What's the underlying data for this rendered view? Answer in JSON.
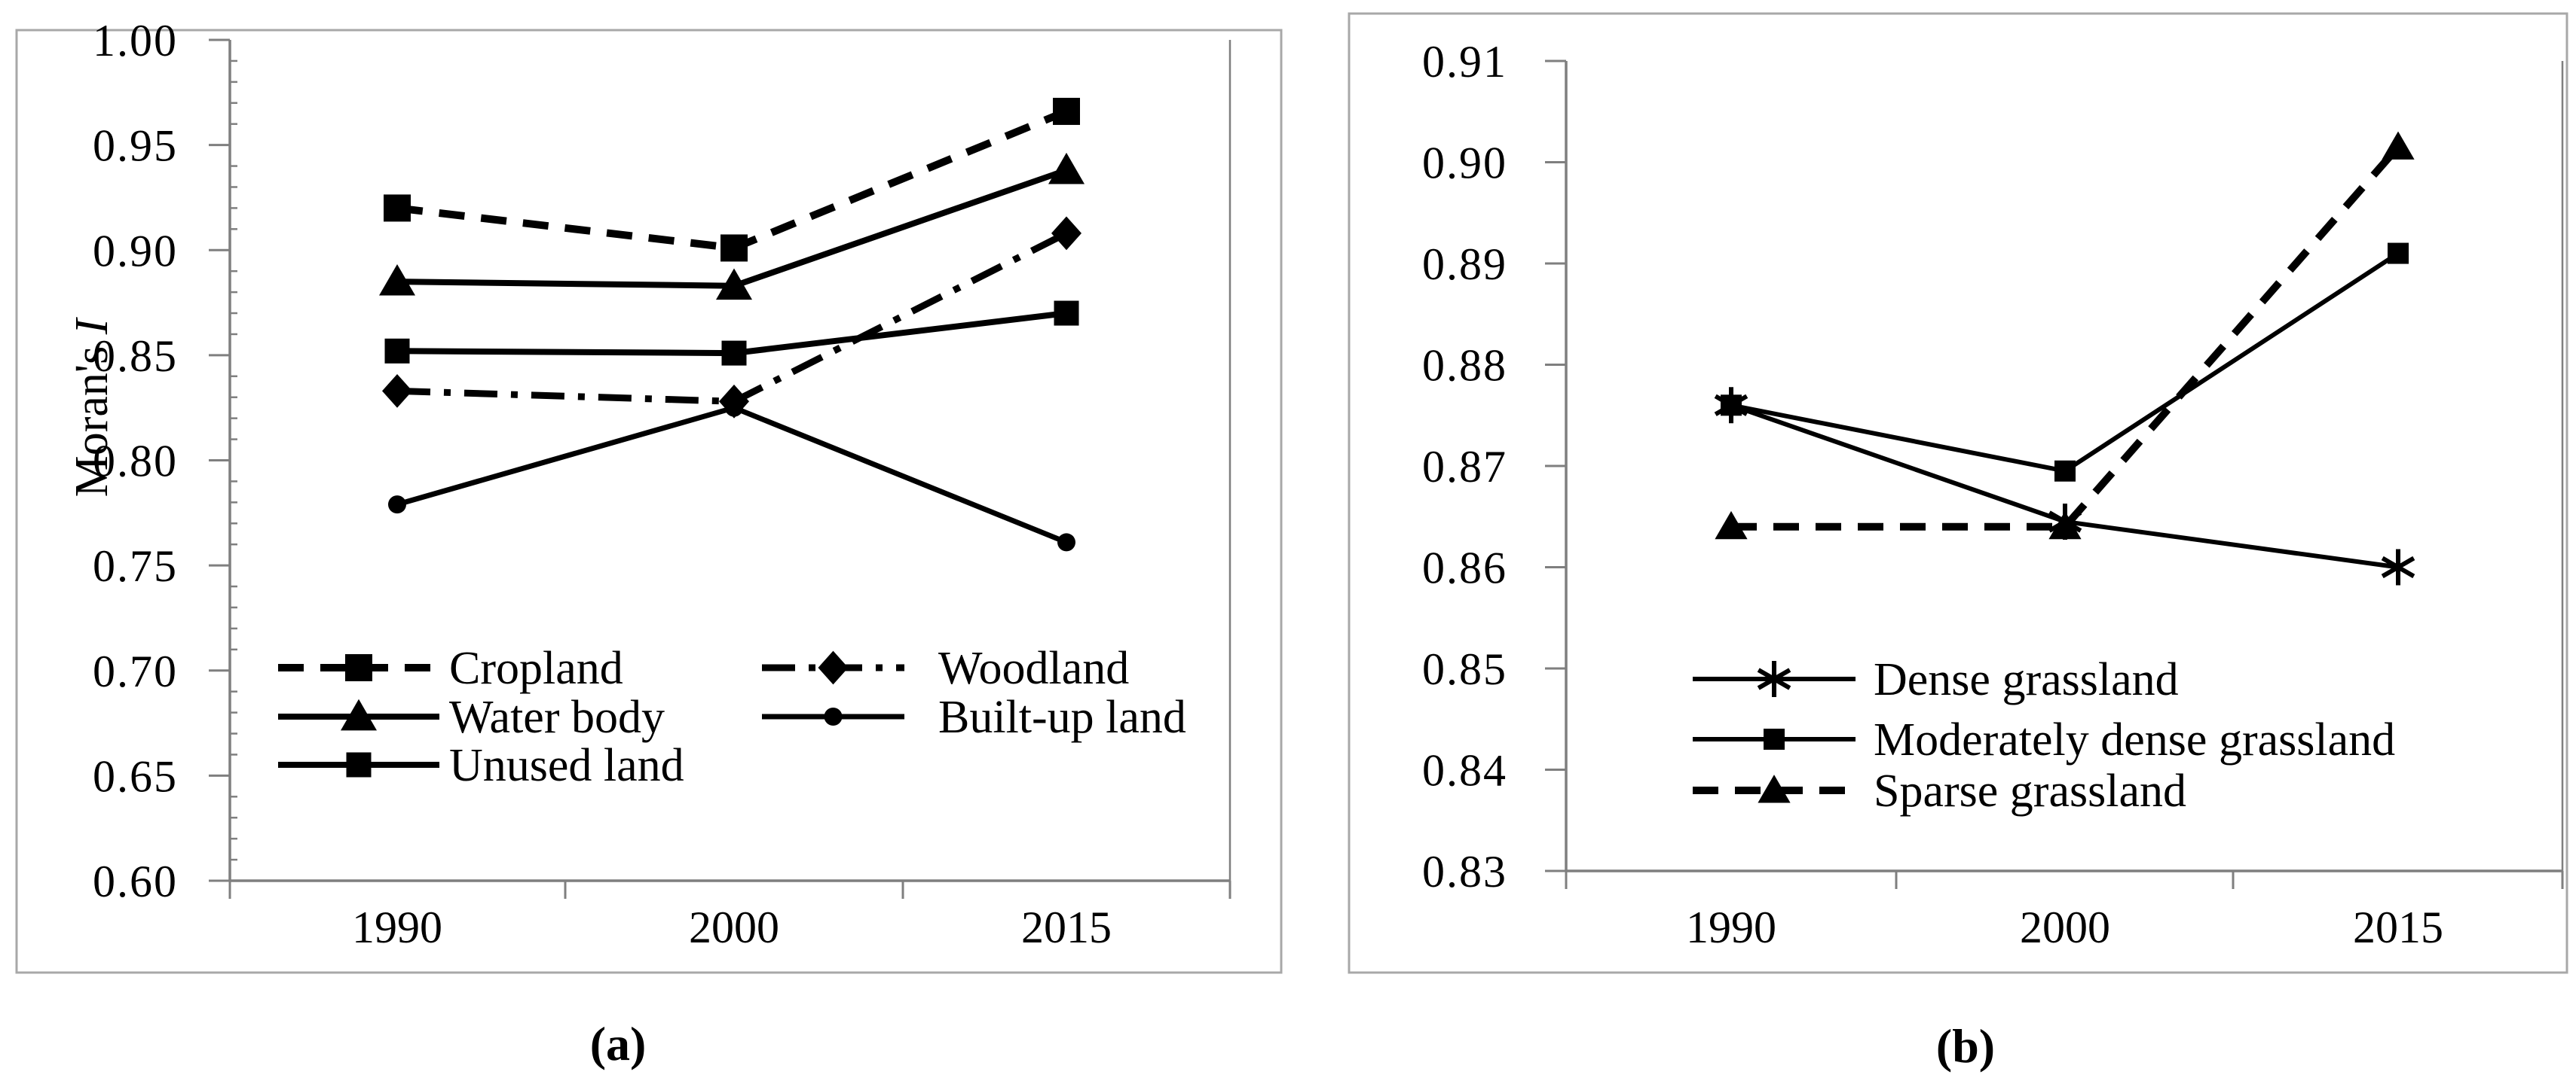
{
  "colors": {
    "series": "#000000",
    "axis": "#7f7f7f",
    "panel_border": "#a8a8a8",
    "text": "#000000",
    "background": "#ffffff"
  },
  "figure": {
    "caption_a": "(a)",
    "caption_b": "(b)",
    "ylabel_main": "Moran's",
    "ylabel_italic": "I"
  },
  "chart_data": [
    {
      "type": "line",
      "panel": "a",
      "title": "",
      "xlabel": "",
      "ylabel": "Moran's I",
      "categories": [
        "1990",
        "2000",
        "2015"
      ],
      "ylim": [
        0.6,
        1.0
      ],
      "ytick_step": 0.05,
      "minor_tick_step": 0.01,
      "ytick_labels": [
        "1.00",
        "0.95",
        "0.90",
        "0.85",
        "0.80",
        "0.75",
        "0.70",
        "0.65",
        "0.60"
      ],
      "grid": false,
      "legend_position": "inside bottom-left, two columns",
      "series": [
        {
          "name": "Cropland",
          "values": [
            0.92,
            0.901,
            0.966
          ],
          "line": "dashed",
          "marker": "square",
          "lw": 10,
          "ms": 36
        },
        {
          "name": "Water body",
          "values": [
            0.885,
            0.883,
            0.938
          ],
          "line": "solid",
          "marker": "triangle",
          "lw": 8,
          "ms": 40
        },
        {
          "name": "Unused land",
          "values": [
            0.852,
            0.851,
            0.87
          ],
          "line": "solid",
          "marker": "square",
          "lw": 8,
          "ms": 33
        },
        {
          "name": "Woodland",
          "values": [
            0.833,
            0.828,
            0.908
          ],
          "line": "dashdot",
          "marker": "diamond",
          "lw": 9,
          "ms": 40
        },
        {
          "name": "Built-up land",
          "values": [
            0.779,
            0.825,
            0.761
          ],
          "line": "solid",
          "marker": "circle",
          "lw": 7,
          "ms": 24
        }
      ],
      "legend_order": [
        "Cropland",
        "Woodland",
        "Water body",
        "Built-up land",
        "Unused land"
      ]
    },
    {
      "type": "line",
      "panel": "b",
      "title": "",
      "xlabel": "",
      "ylabel": "",
      "categories": [
        "1990",
        "2000",
        "2015"
      ],
      "ylim": [
        0.83,
        0.91
      ],
      "ytick_step": 0.01,
      "ytick_labels": [
        "0.91",
        "0.90",
        "0.89",
        "0.88",
        "0.87",
        "0.86",
        "0.85",
        "0.84",
        "0.83"
      ],
      "grid": false,
      "legend_position": "inside bottom-left",
      "series": [
        {
          "name": "Dense grassland",
          "values": [
            0.876,
            0.8645,
            0.86
          ],
          "line": "solid",
          "marker": "asterisk",
          "lw": 6,
          "ms": 48
        },
        {
          "name": "Moderately dense grassland",
          "values": [
            0.876,
            0.8695,
            0.891
          ],
          "line": "solid",
          "marker": "square",
          "lw": 6,
          "ms": 28
        },
        {
          "name": "Sparse grassland",
          "values": [
            0.864,
            0.864,
            0.9015
          ],
          "line": "dashed",
          "marker": "triangle",
          "lw": 10,
          "ms": 36
        }
      ],
      "legend_order": [
        "Dense grassland",
        "Moderately dense grassland",
        "Sparse grassland"
      ]
    }
  ]
}
